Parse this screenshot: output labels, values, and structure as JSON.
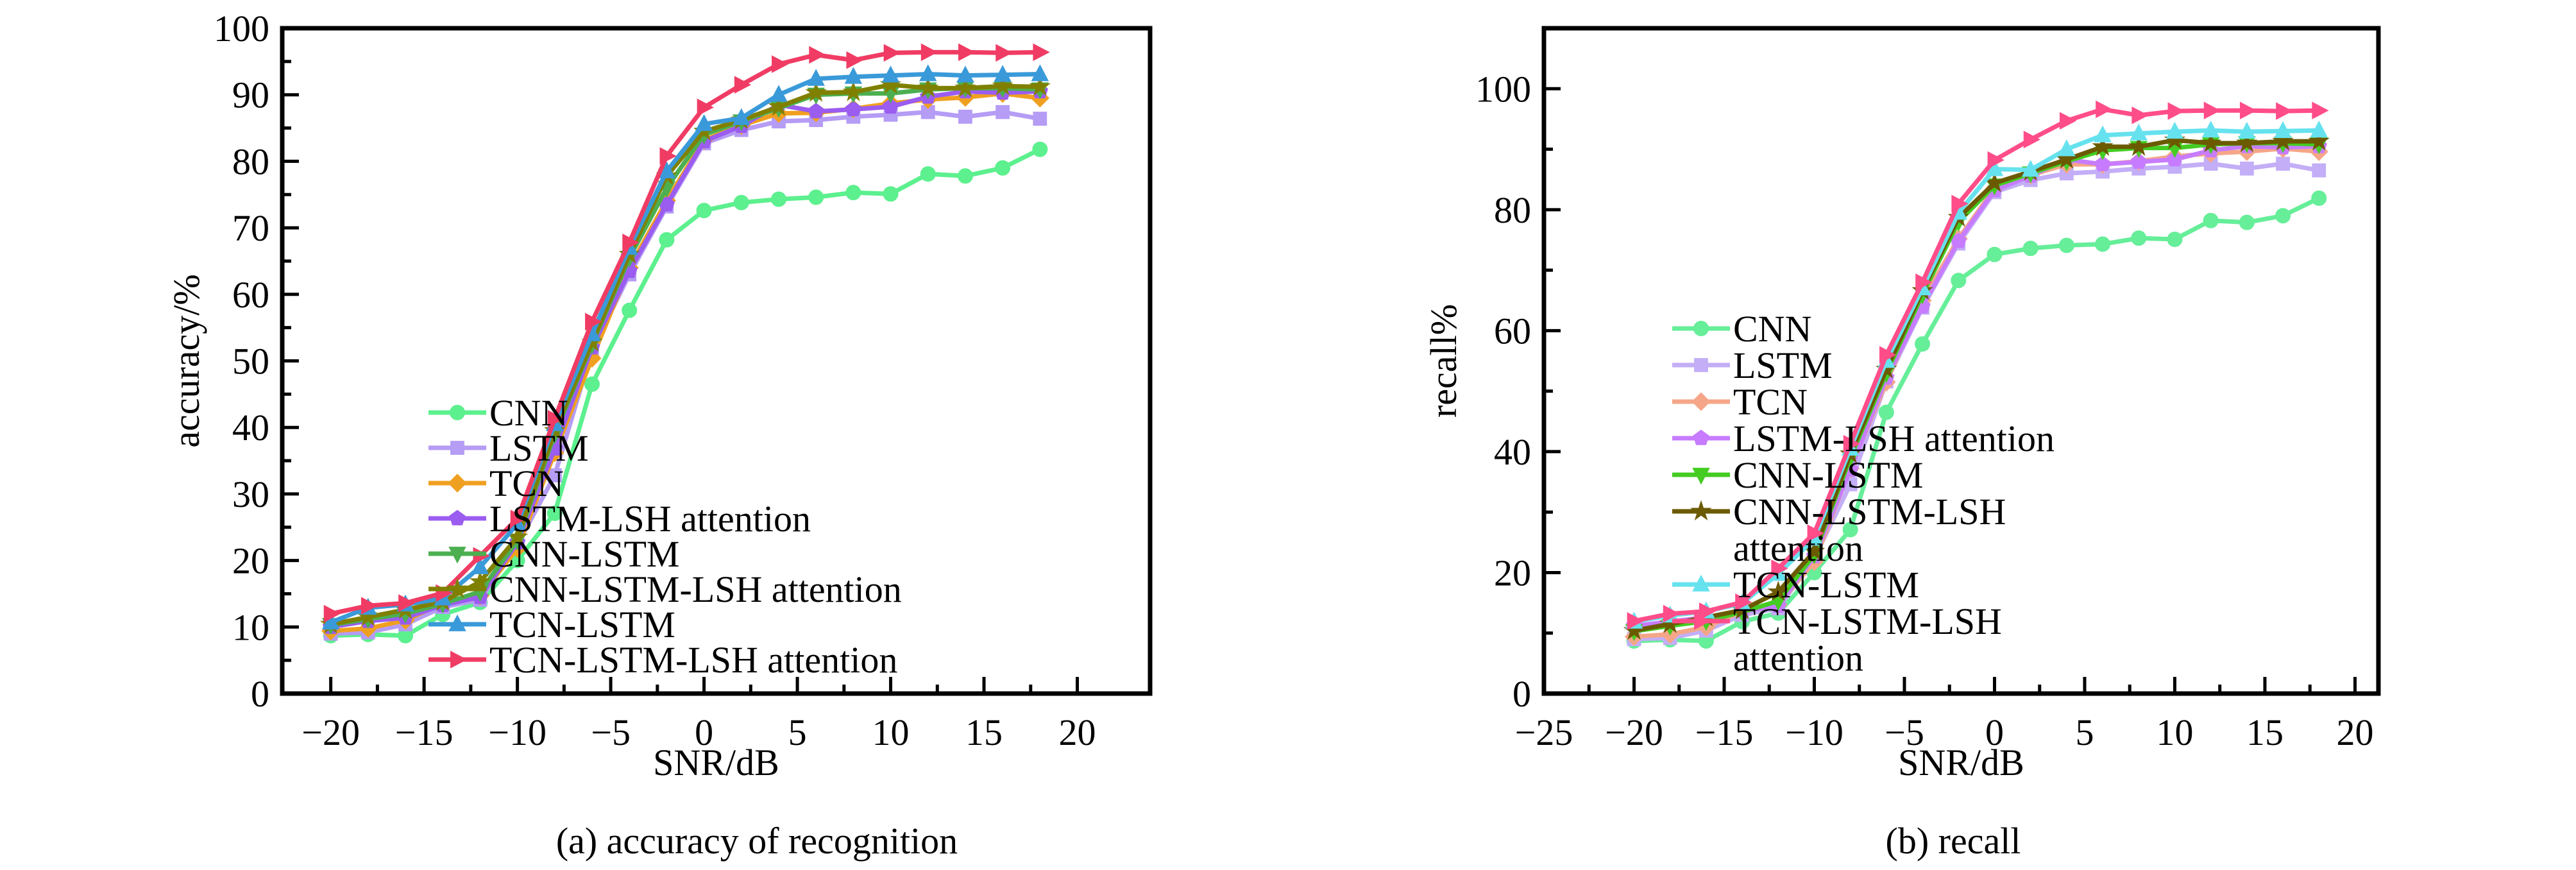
{
  "chart_data": [
    {
      "type": "line",
      "caption": "(a) accuracy of recognition",
      "xlabel": "SNR/dB",
      "ylabel": "accuracy/%",
      "xlim": [
        -22.6,
        23.9
      ],
      "ylim": [
        0,
        100
      ],
      "xticks": [
        -20,
        -15,
        -10,
        -5,
        0,
        5,
        10,
        15,
        20
      ],
      "yticks": [
        0,
        10,
        20,
        30,
        40,
        50,
        60,
        70,
        80,
        90,
        100
      ],
      "grid": false,
      "legend_placement": "bottom-right",
      "x": [
        -20,
        -18,
        -16,
        -14,
        -12,
        -10,
        -8,
        -6,
        -4,
        -2,
        0,
        2,
        4,
        6,
        8,
        10,
        12,
        14,
        16,
        18
      ],
      "series": [
        {
          "name": "CNN",
          "color": "#5cf08e",
          "marker": "circle",
          "values": [
            8.7,
            8.9,
            8.7,
            11.9,
            13.7,
            20.0,
            27.1,
            46.5,
            57.6,
            68.2,
            72.6,
            73.8,
            74.3,
            74.6,
            75.3,
            75.1,
            78.1,
            77.8,
            79.0,
            81.8
          ]
        },
        {
          "name": "LSTM",
          "color": "#b59cf5",
          "marker": "square",
          "values": [
            9.0,
            9.2,
            10.4,
            13.0,
            14.1,
            22.4,
            32.8,
            51.6,
            63.0,
            73.2,
            82.7,
            84.7,
            86.0,
            86.2,
            86.7,
            87.0,
            87.4,
            86.7,
            87.4,
            86.4
          ]
        },
        {
          "name": "TCN",
          "color": "#f0a020",
          "marker": "diamond",
          "values": [
            9.4,
            9.8,
            11.0,
            13.6,
            14.7,
            21.8,
            36.2,
            50.4,
            64.0,
            74.1,
            83.2,
            85.4,
            87.2,
            87.3,
            87.9,
            88.7,
            89.3,
            89.6,
            90.2,
            89.5
          ]
        },
        {
          "name": "LSTM-LSH attention",
          "color": "#9b5cf0",
          "marker": "pentagon",
          "values": [
            10.0,
            10.9,
            11.4,
            13.3,
            14.5,
            22.7,
            36.8,
            52.0,
            63.5,
            73.5,
            83.0,
            85.3,
            88.5,
            87.5,
            87.8,
            88.2,
            89.7,
            90.5,
            90.3,
            90.5
          ]
        },
        {
          "name": "CNN-LSTM",
          "color": "#4caf50",
          "marker": "triangle-down",
          "values": [
            10.3,
            11.2,
            12.0,
            13.5,
            15.3,
            23.0,
            39.0,
            52.5,
            65.5,
            76.0,
            84.0,
            86.0,
            88.0,
            90.0,
            90.2,
            90.2,
            90.8,
            91.0,
            91.0,
            90.8
          ]
        },
        {
          "name": "CNN-LSTM-LSH attention",
          "color": "#808000",
          "marker": "star",
          "values": [
            10.4,
            11.5,
            12.6,
            13.8,
            16.8,
            23.5,
            39.5,
            52.8,
            66.0,
            77.8,
            84.5,
            86.2,
            88.2,
            90.3,
            90.4,
            91.5,
            91.0,
            91.0,
            91.3,
            91.2
          ]
        },
        {
          "name": "TCN-LSTM",
          "color": "#3a9ad9",
          "marker": "triangle-up",
          "values": [
            10.7,
            12.9,
            13.4,
            14.3,
            19.0,
            25.5,
            40.5,
            54.0,
            67.0,
            78.5,
            85.6,
            86.5,
            90.0,
            92.4,
            92.7,
            92.9,
            93.1,
            92.9,
            93.0,
            93.1
          ]
        },
        {
          "name": "TCN-LSTM-LSH attention",
          "color": "#f03c64",
          "marker": "triangle-right",
          "values": [
            12.0,
            13.2,
            13.6,
            15.1,
            20.7,
            26.3,
            41.3,
            55.9,
            67.8,
            80.8,
            88.1,
            91.5,
            94.6,
            96.0,
            95.2,
            96.3,
            96.4,
            96.4,
            96.3,
            96.4
          ]
        }
      ]
    },
    {
      "type": "line",
      "caption": "(b) recall",
      "xlabel": "SNR/dB",
      "ylabel": "recall%",
      "xlim": [
        -25,
        21.3
      ],
      "ylim": [
        0,
        110
      ],
      "xticks": [
        -25,
        -20,
        -15,
        -10,
        -5,
        0,
        5,
        10,
        15,
        20
      ],
      "yticks": [
        0,
        20,
        40,
        60,
        80,
        100
      ],
      "grid": false,
      "legend_placement": "bottom-right",
      "x": [
        -20,
        -18,
        -16,
        -14,
        -12,
        -10,
        -8,
        -6,
        -4,
        -2,
        0,
        2,
        4,
        6,
        8,
        10,
        12,
        14,
        16,
        18
      ],
      "series": [
        {
          "name": "CNN",
          "color": "#66ee99",
          "marker": "circle",
          "values": [
            8.7,
            8.9,
            8.7,
            11.9,
            13.3,
            20.0,
            27.1,
            46.5,
            57.8,
            68.3,
            72.6,
            73.6,
            74.1,
            74.3,
            75.3,
            75.1,
            78.2,
            77.9,
            79.0,
            81.9
          ]
        },
        {
          "name": "LSTM",
          "color": "#c3aef7",
          "marker": "square",
          "values": [
            9.0,
            9.2,
            10.4,
            13.0,
            14.1,
            22.4,
            34.6,
            51.6,
            63.8,
            74.4,
            82.9,
            84.9,
            86.0,
            86.3,
            86.8,
            87.1,
            87.6,
            86.8,
            87.6,
            86.5
          ]
        },
        {
          "name": "TCN",
          "color": "#f5a688",
          "marker": "diamond",
          "values": [
            9.4,
            9.8,
            11.0,
            13.6,
            14.7,
            21.8,
            37.2,
            51.5,
            65.0,
            75.2,
            83.5,
            85.7,
            87.5,
            87.5,
            88.0,
            88.8,
            89.3,
            89.6,
            90.1,
            89.6
          ]
        },
        {
          "name": "LSTM-LSH attention",
          "color": "#c77cff",
          "marker": "pentagon",
          "values": [
            11.2,
            11.9,
            12.6,
            13.6,
            14.5,
            22.7,
            37.0,
            52.2,
            64.0,
            74.8,
            83.2,
            85.6,
            88.3,
            87.5,
            87.9,
            88.3,
            89.8,
            90.5,
            90.3,
            90.5
          ]
        },
        {
          "name": "CNN-LSTM",
          "color": "#44cc22",
          "marker": "triangle-down",
          "values": [
            10.3,
            11.2,
            12.0,
            13.5,
            15.3,
            23.0,
            39.0,
            53.0,
            66.0,
            78.0,
            84.0,
            86.0,
            88.0,
            89.8,
            90.2,
            90.2,
            90.8,
            91.0,
            91.0,
            90.8
          ]
        },
        {
          "name": "CNN-LSTM-LSH attention",
          "color": "#6b5a00",
          "marker": "star",
          "values": [
            10.4,
            11.5,
            12.6,
            13.8,
            16.8,
            23.5,
            39.6,
            53.6,
            66.6,
            78.7,
            84.4,
            86.3,
            88.3,
            90.4,
            90.4,
            91.5,
            91.0,
            91.0,
            91.3,
            91.3
          ]
        },
        {
          "name": "TCN-LSTM",
          "color": "#66e2ee",
          "marker": "triangle-up",
          "values": [
            11.9,
            12.9,
            13.6,
            14.9,
            19.8,
            25.6,
            40.5,
            55.0,
            67.0,
            79.5,
            86.7,
            86.6,
            90.0,
            92.3,
            92.6,
            92.9,
            93.1,
            92.9,
            93.0,
            93.1
          ]
        },
        {
          "name": "TCN-LSTM-LSH attention",
          "color": "#ff4d8a",
          "marker": "triangle-right",
          "values": [
            12.0,
            13.2,
            13.6,
            15.1,
            20.7,
            26.5,
            41.3,
            56.0,
            68.0,
            81.0,
            88.2,
            91.6,
            94.7,
            96.6,
            95.6,
            96.3,
            96.4,
            96.4,
            96.3,
            96.4
          ]
        }
      ]
    }
  ]
}
